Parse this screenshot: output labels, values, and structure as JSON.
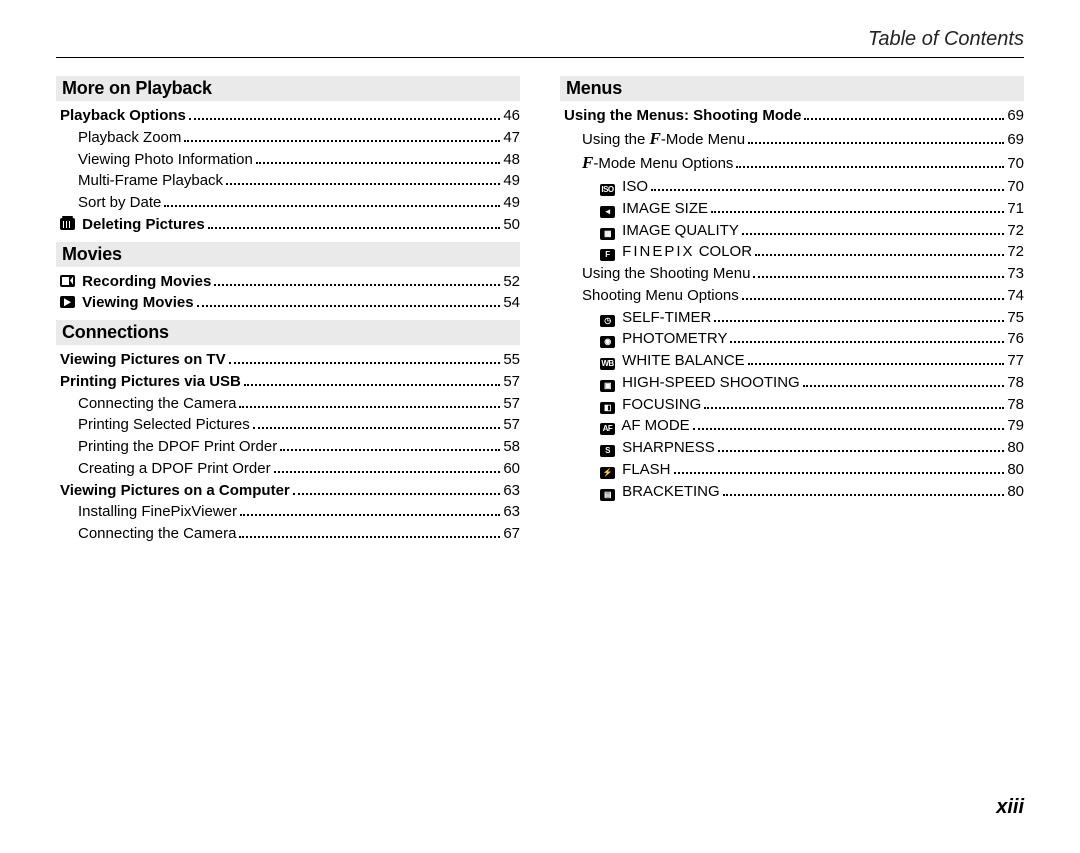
{
  "header_title": "Table of Contents",
  "page_number": "xiii",
  "left_column": [
    {
      "type": "section",
      "label": "More on Playback"
    },
    {
      "type": "row",
      "level": 0,
      "bold": true,
      "label": "Playback Options",
      "page": "46"
    },
    {
      "type": "row",
      "level": 1,
      "bold": false,
      "label": "Playback Zoom",
      "page": "47"
    },
    {
      "type": "row",
      "level": 1,
      "bold": false,
      "label": "Viewing Photo Information",
      "page": "48"
    },
    {
      "type": "row",
      "level": 1,
      "bold": false,
      "label": "Multi-Frame Playback",
      "page": "49"
    },
    {
      "type": "row",
      "level": 1,
      "bold": false,
      "label": "Sort by Date",
      "page": "49"
    },
    {
      "type": "row",
      "level": 0,
      "bold": true,
      "icon": "trash",
      "label": "Deleting Pictures",
      "page": "50"
    },
    {
      "type": "section",
      "label": "Movies"
    },
    {
      "type": "row",
      "level": 0,
      "bold": true,
      "icon": "movie",
      "label": "Recording Movies",
      "page": "52"
    },
    {
      "type": "row",
      "level": 0,
      "bold": true,
      "icon": "play",
      "label": "Viewing Movies",
      "page": "54"
    },
    {
      "type": "section",
      "label": "Connections"
    },
    {
      "type": "row",
      "level": 0,
      "bold": true,
      "label": "Viewing Pictures on TV",
      "page": "55"
    },
    {
      "type": "row",
      "level": 0,
      "bold": true,
      "label": "Printing Pictures via USB",
      "page": "57"
    },
    {
      "type": "row",
      "level": 1,
      "bold": false,
      "label": "Connecting the Camera",
      "page": "57"
    },
    {
      "type": "row",
      "level": 1,
      "bold": false,
      "label": "Printing Selected Pictures",
      "page": "57"
    },
    {
      "type": "row",
      "level": 1,
      "bold": false,
      "label": "Printing the DPOF Print Order",
      "page": "58"
    },
    {
      "type": "row",
      "level": 1,
      "bold": false,
      "label": "Creating a DPOF Print Order",
      "page": "60"
    },
    {
      "type": "row",
      "level": 0,
      "bold": true,
      "label": "Viewing Pictures on a Computer",
      "page": "63"
    },
    {
      "type": "row",
      "level": 1,
      "bold": false,
      "label": "Installing FinePixViewer",
      "page": "63"
    },
    {
      "type": "row",
      "level": 1,
      "bold": false,
      "label": "Connecting the Camera",
      "page": "67"
    }
  ],
  "right_column": [
    {
      "type": "section",
      "label": "Menus"
    },
    {
      "type": "row",
      "level": 0,
      "bold": true,
      "label": "Using the Menus: Shooting Mode",
      "page": "69"
    },
    {
      "type": "row",
      "level": 1,
      "bold": false,
      "prefix_html": "Using the <span class='f-ital'>F</span>-Mode Menu",
      "page": "69"
    },
    {
      "type": "row",
      "level": 1,
      "bold": false,
      "prefix_html": "<span class='f-ital'>F</span>-Mode Menu Options",
      "page": "70"
    },
    {
      "type": "row",
      "level": 2,
      "bold": false,
      "badge": "ISO",
      "label": "ISO",
      "page": "70"
    },
    {
      "type": "row",
      "level": 2,
      "bold": false,
      "badge": "◄",
      "label": "IMAGE SIZE",
      "page": "71"
    },
    {
      "type": "row",
      "level": 2,
      "bold": false,
      "badge": "▦",
      "label": "IMAGE QUALITY",
      "page": "72"
    },
    {
      "type": "row",
      "level": 2,
      "bold": false,
      "badge": "F",
      "prefix_html": "<span class='finepix'>FINEPIX</span> COLOR",
      "page": "72"
    },
    {
      "type": "row",
      "level": 1,
      "bold": false,
      "label": "Using the Shooting Menu",
      "page": "73"
    },
    {
      "type": "row",
      "level": 1,
      "bold": false,
      "label": "Shooting Menu Options",
      "page": "74"
    },
    {
      "type": "row",
      "level": 2,
      "bold": false,
      "badge": "◷",
      "label": "SELF-TIMER",
      "page": "75"
    },
    {
      "type": "row",
      "level": 2,
      "bold": false,
      "badge": "◉",
      "label": "PHOTOMETRY",
      "page": "76"
    },
    {
      "type": "row",
      "level": 2,
      "bold": false,
      "badge": "WB",
      "label": "WHITE BALANCE",
      "page": "77"
    },
    {
      "type": "row",
      "level": 2,
      "bold": false,
      "badge": "▣",
      "label": "HIGH-SPEED SHOOTING",
      "page": "78"
    },
    {
      "type": "row",
      "level": 2,
      "bold": false,
      "badge": "◧",
      "label": "FOCUSING",
      "page": "78"
    },
    {
      "type": "row",
      "level": 2,
      "bold": false,
      "badge": "AF",
      "label": "AF MODE",
      "page": "79"
    },
    {
      "type": "row",
      "level": 2,
      "bold": false,
      "badge": "S",
      "label": "SHARPNESS",
      "page": "80"
    },
    {
      "type": "row",
      "level": 2,
      "bold": false,
      "badge": "⚡",
      "label": "FLASH",
      "page": "80"
    },
    {
      "type": "row",
      "level": 2,
      "bold": false,
      "badge": "▤",
      "label": "BRACKETING",
      "page": "80"
    }
  ]
}
